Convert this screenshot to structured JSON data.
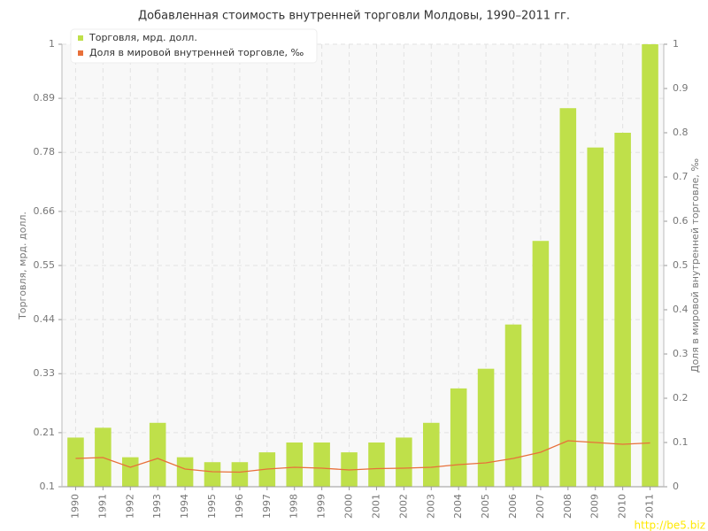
{
  "chart_data": {
    "type": "bar_line",
    "title": "Добавленная стоимость внутренней торговли Молдовы, 1990–2011 гг.",
    "y_label": "Торговля, мрд. долл.",
    "y2_label": "Доля в мировой внутренней торговле, ‰",
    "categories": [
      "1990",
      "1991",
      "1992",
      "1993",
      "1994",
      "1995",
      "1996",
      "1997",
      "1998",
      "1999",
      "2000",
      "2001",
      "2002",
      "2003",
      "2004",
      "2005",
      "2006",
      "2007",
      "2008",
      "2009",
      "2010",
      "2011"
    ],
    "series": [
      {
        "name": "Торговля, мрд. долл.",
        "type": "bar",
        "color": "#bfe04a",
        "values": [
          0.2,
          0.22,
          0.16,
          0.23,
          0.16,
          0.15,
          0.15,
          0.17,
          0.19,
          0.19,
          0.17,
          0.19,
          0.2,
          0.23,
          0.3,
          0.34,
          0.43,
          0.6,
          0.87,
          0.79,
          0.82,
          1.0
        ]
      },
      {
        "name": "Доля в мировой внутренней торговле, ‰",
        "type": "line",
        "axis": "y2",
        "color": "#e8703a",
        "values": [
          0.064,
          0.066,
          0.044,
          0.064,
          0.04,
          0.034,
          0.033,
          0.04,
          0.044,
          0.042,
          0.038,
          0.041,
          0.042,
          0.044,
          0.05,
          0.054,
          0.064,
          0.078,
          0.104,
          0.1,
          0.096,
          0.099
        ]
      }
    ],
    "ylim": [
      0.1,
      1
    ],
    "yticks": [
      0.1,
      0.21,
      0.33,
      0.44,
      0.55,
      0.66,
      0.78,
      0.89,
      1
    ],
    "y2lim": [
      0,
      1
    ],
    "y2ticks": [
      0,
      0.1,
      0.2,
      0.3,
      0.4,
      0.5,
      0.6,
      0.7,
      0.8,
      0.9,
      1
    ],
    "grid": true,
    "legend": "top-left"
  },
  "watermark": "http://be5.biz"
}
